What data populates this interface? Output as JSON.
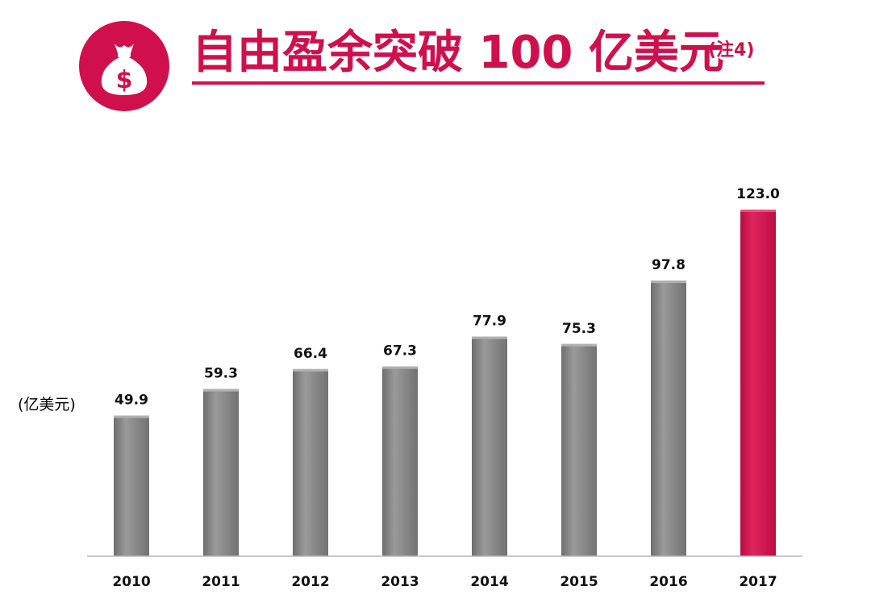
{
  "header": {
    "title": "自由盈余突破 100 亿美元",
    "note": "(注4)",
    "icon": "money-bag-dollar-icon",
    "accent_color": "#d0104c"
  },
  "chart_data": {
    "type": "bar",
    "categories": [
      "2010",
      "2011",
      "2012",
      "2013",
      "2014",
      "2015",
      "2016",
      "2017"
    ],
    "values": [
      49.9,
      59.3,
      66.4,
      67.3,
      77.9,
      75.3,
      97.8,
      123.0
    ],
    "value_labels": [
      "49.9",
      "59.3",
      "66.4",
      "67.3",
      "77.9",
      "75.3",
      "97.8",
      "123.0"
    ],
    "unit_label": "(亿美元)",
    "ylim": [
      0,
      123.0
    ],
    "grid": false,
    "bar_color": "#808080",
    "highlight_color": "#d0104c",
    "highlight_index": 7
  }
}
